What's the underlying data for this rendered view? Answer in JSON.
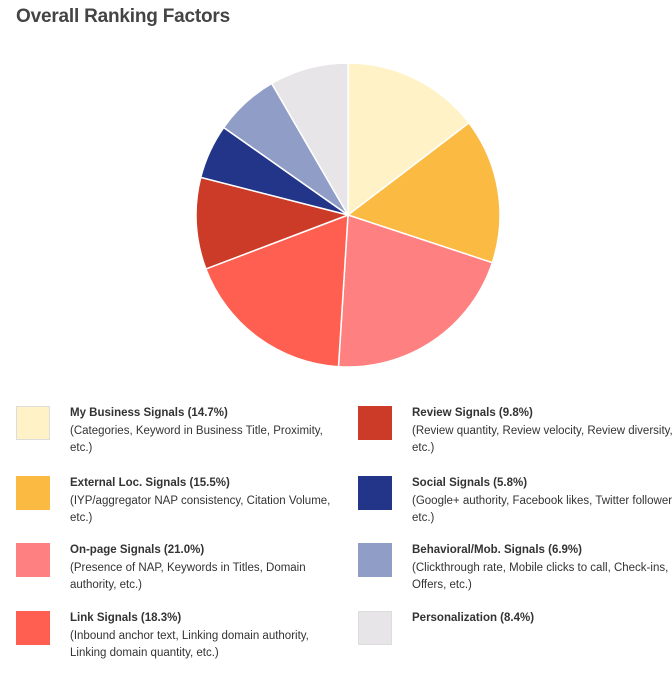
{
  "title": "Overall Ranking Factors",
  "chart_data": {
    "type": "pie",
    "title": "Overall Ranking Factors",
    "slices": [
      {
        "label": "My Business Signals (14.7%)",
        "value": 14.7,
        "color": "#FFF2C6",
        "description": "(Categories, Keyword in Business Title, Proximity, etc.)"
      },
      {
        "label": "External Loc. Signals (15.5%)",
        "value": 15.5,
        "color": "#FBBA42",
        "description": "(IYP/aggregator NAP consistency, Citation Volume, etc.)"
      },
      {
        "label": "On-page Signals (21.0%)",
        "value": 21.0,
        "color": "#FE8080",
        "description": "(Presence of NAP, Keywords in Titles, Domain authority, etc.)"
      },
      {
        "label": "Link Signals (18.3%)",
        "value": 18.3,
        "color": "#FF5F50",
        "description": "(Inbound anchor text, Linking domain authority, Linking domain quantity, etc.)"
      },
      {
        "label": "Review Signals (9.8%)",
        "value": 9.8,
        "color": "#CC3B28",
        "description": "(Review quantity, Review velocity, Review diversity, etc.)"
      },
      {
        "label": "Social Signals (5.8%)",
        "value": 5.8,
        "color": "#223588",
        "description": "(Google+ authority, Facebook likes, Twitter followers, etc.)"
      },
      {
        "label": "Behavioral/Mob. Signals (6.9%)",
        "value": 6.9,
        "color": "#909EC7",
        "description": "(Clickthrough rate, Mobile clicks to call, Check-ins, Offers, etc.)"
      },
      {
        "label": "Personalization (8.4%)",
        "value": 8.4,
        "color": "#E7E5E7",
        "description": ""
      }
    ],
    "legend_placement": "bottom",
    "legend_columns": 2
  }
}
